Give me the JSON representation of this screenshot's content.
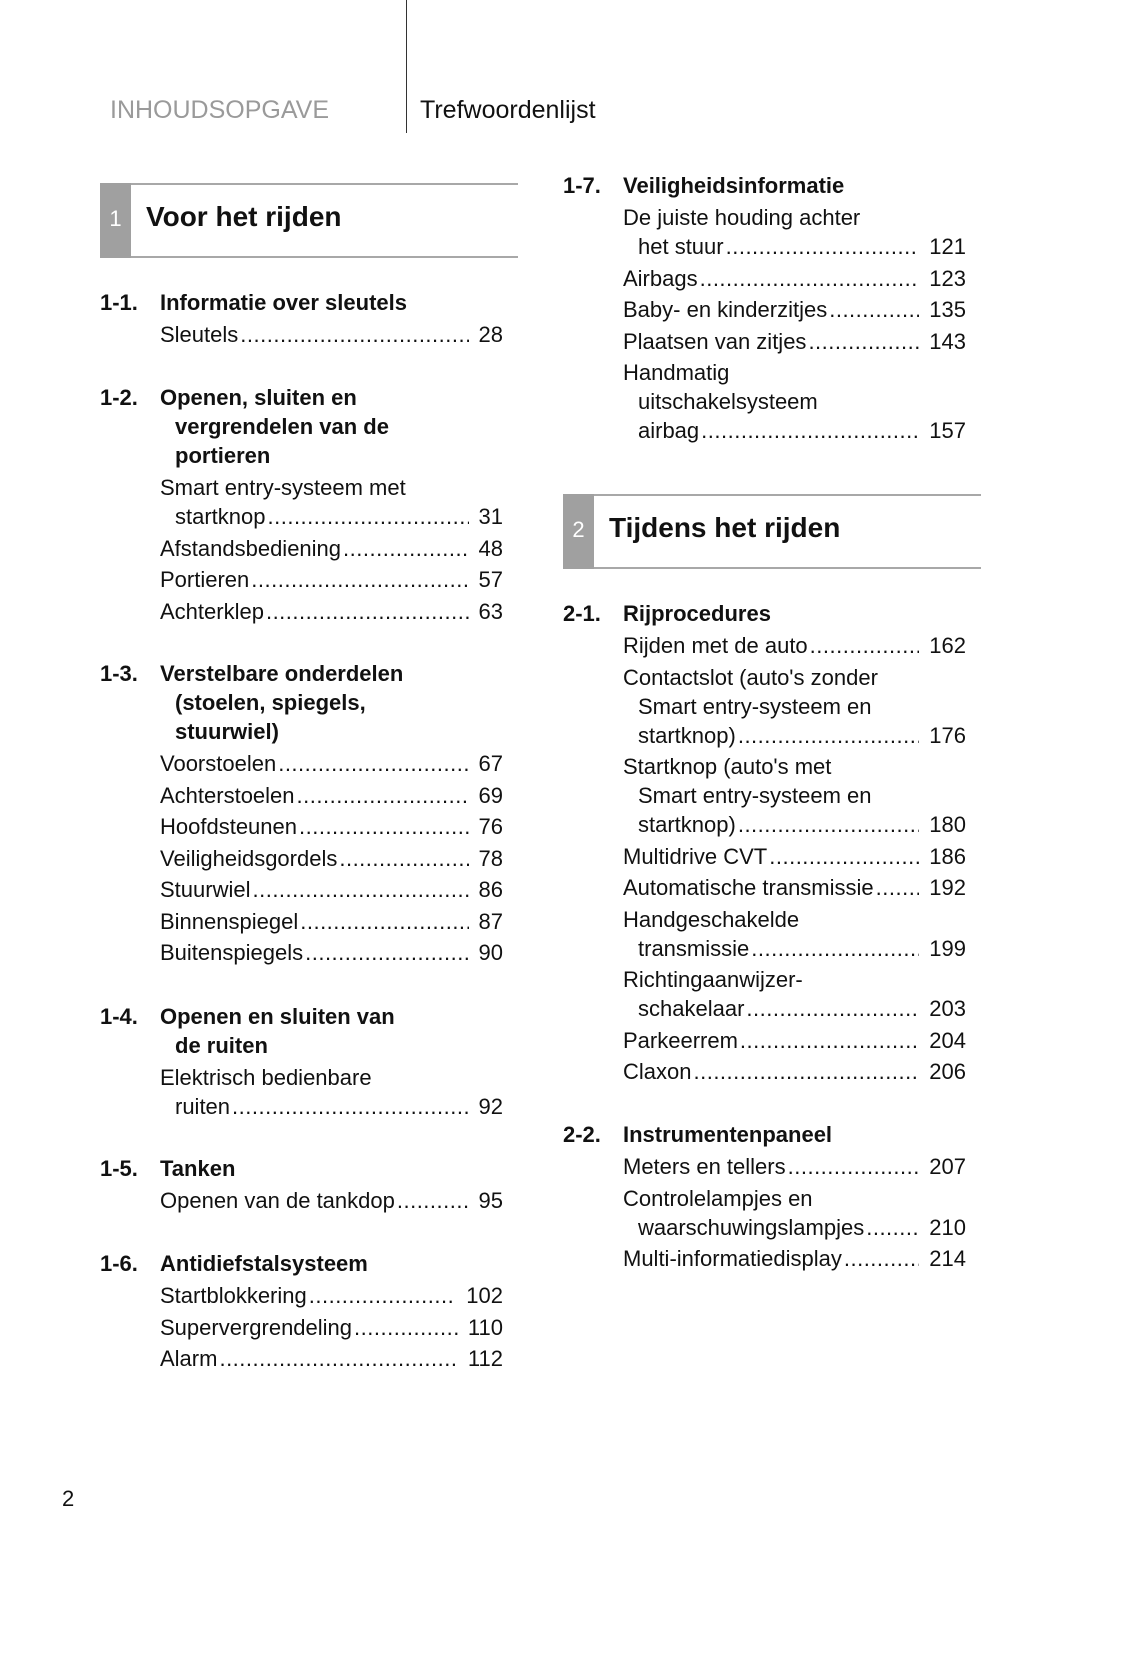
{
  "header": {
    "left": "INHOUDSOPGAVE",
    "right": "Trefwoordenlijst"
  },
  "chapters": [
    {
      "num": "1",
      "title": "Voor het rijden"
    },
    {
      "num": "2",
      "title": "Tijdens het rijden"
    }
  ],
  "sections": [
    {
      "num": "1-1.",
      "title": [
        "Informatie over sleutels"
      ],
      "entries": [
        {
          "lines": [
            "Sleutels"
          ],
          "page": "28"
        }
      ]
    },
    {
      "num": "1-2.",
      "title": [
        "Openen, sluiten en",
        "vergrendelen van de",
        "portieren"
      ],
      "entries": [
        {
          "lines": [
            "Smart entry-systeem met",
            "startknop"
          ],
          "page": "31"
        },
        {
          "lines": [
            "Afstandsbediening"
          ],
          "page": "48"
        },
        {
          "lines": [
            "Portieren"
          ],
          "page": "57"
        },
        {
          "lines": [
            "Achterklep"
          ],
          "page": "63"
        }
      ]
    },
    {
      "num": "1-3.",
      "title": [
        "Verstelbare onderdelen",
        "(stoelen, spiegels,",
        "stuurwiel)"
      ],
      "entries": [
        {
          "lines": [
            "Voorstoelen"
          ],
          "page": "67"
        },
        {
          "lines": [
            "Achterstoelen"
          ],
          "page": "69"
        },
        {
          "lines": [
            "Hoofdsteunen"
          ],
          "page": "76"
        },
        {
          "lines": [
            "Veiligheidsgordels"
          ],
          "page": "78"
        },
        {
          "lines": [
            "Stuurwiel"
          ],
          "page": "86"
        },
        {
          "lines": [
            "Binnenspiegel"
          ],
          "page": "87"
        },
        {
          "lines": [
            "Buitenspiegels"
          ],
          "page": "90"
        }
      ]
    },
    {
      "num": "1-4.",
      "title": [
        "Openen en sluiten van",
        "de ruiten"
      ],
      "entries": [
        {
          "lines": [
            "Elektrisch bedienbare",
            "ruiten"
          ],
          "page": "92"
        }
      ]
    },
    {
      "num": "1-5.",
      "title": [
        "Tanken"
      ],
      "entries": [
        {
          "lines": [
            "Openen van de tankdop"
          ],
          "page": "95"
        }
      ]
    },
    {
      "num": "1-6.",
      "title": [
        "Antidiefstalsysteem"
      ],
      "entries": [
        {
          "lines": [
            "Startblokkering"
          ],
          "page": "102"
        },
        {
          "lines": [
            "Supervergrendeling"
          ],
          "page": "110"
        },
        {
          "lines": [
            "Alarm"
          ],
          "page": "112"
        }
      ]
    },
    {
      "num": "1-7.",
      "title": [
        "Veiligheidsinformatie"
      ],
      "entries": [
        {
          "lines": [
            "De juiste houding achter",
            "het stuur"
          ],
          "page": "121"
        },
        {
          "lines": [
            "Airbags"
          ],
          "page": "123"
        },
        {
          "lines": [
            "Baby- en kinderzitjes"
          ],
          "page": "135"
        },
        {
          "lines": [
            "Plaatsen van zitjes"
          ],
          "page": "143"
        },
        {
          "lines": [
            "Handmatig",
            "uitschakelsysteem",
            "airbag"
          ],
          "page": "157"
        }
      ]
    },
    {
      "num": "2-1.",
      "title": [
        "Rijprocedures"
      ],
      "entries": [
        {
          "lines": [
            "Rijden met de auto"
          ],
          "page": "162"
        },
        {
          "lines": [
            "Contactslot (auto's zonder",
            "Smart entry-systeem en",
            "startknop)"
          ],
          "page": "176"
        },
        {
          "lines": [
            "Startknop (auto's met",
            "Smart entry-systeem en",
            "startknop)"
          ],
          "page": "180"
        },
        {
          "lines": [
            "Multidrive CVT"
          ],
          "page": "186"
        },
        {
          "lines": [
            "Automatische transmissie"
          ],
          "page": "192"
        },
        {
          "lines": [
            "Handgeschakelde",
            "transmissie"
          ],
          "page": "199"
        },
        {
          "lines": [
            "Richtingaanwijzer-",
            "schakelaar"
          ],
          "page": "203"
        },
        {
          "lines": [
            "Parkeerrem"
          ],
          "page": "204"
        },
        {
          "lines": [
            "Claxon"
          ],
          "page": "206"
        }
      ]
    },
    {
      "num": "2-2.",
      "title": [
        "Instrumentenpaneel"
      ],
      "entries": [
        {
          "lines": [
            "Meters en tellers"
          ],
          "page": "207"
        },
        {
          "lines": [
            "Controlelampjes en",
            "waarschuwingslampjes"
          ],
          "page": "210"
        },
        {
          "lines": [
            "Multi-informatiedisplay"
          ],
          "page": "214"
        }
      ]
    }
  ],
  "page_number": "2"
}
